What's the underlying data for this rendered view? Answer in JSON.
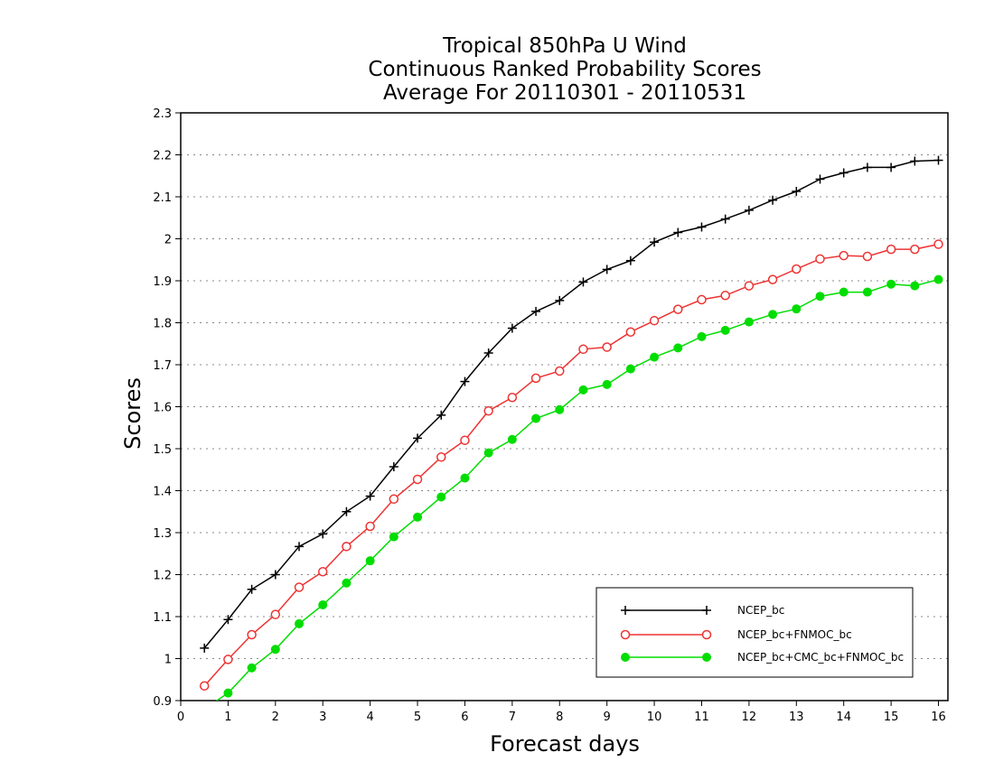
{
  "chart_data": {
    "type": "line",
    "title": [
      "Tropical 850hPa U Wind",
      "Continuous Ranked Probability Scores",
      "Average For 20110301 - 20110531"
    ],
    "xlabel": "Forecast days",
    "ylabel": "Scores",
    "xlim": [
      0,
      16.2
    ],
    "ylim": [
      0.9,
      2.3
    ],
    "xticks": [
      0,
      1,
      2,
      3,
      4,
      5,
      6,
      7,
      8,
      9,
      10,
      11,
      12,
      13,
      14,
      15,
      16
    ],
    "xtick_labels": [
      "0",
      "1",
      "2",
      "3",
      "4",
      "5",
      "6",
      "7",
      "8",
      "9",
      "10",
      "11",
      "12",
      "13",
      "14",
      "15",
      "16"
    ],
    "yticks": [
      0.9,
      1,
      1.1,
      1.2,
      1.3,
      1.4,
      1.5,
      1.6,
      1.7,
      1.8,
      1.9,
      2,
      2.1,
      2.2,
      2.3
    ],
    "ytick_labels": [
      "0.9",
      "1",
      "1.1",
      "1.2",
      "1.3",
      "1.4",
      "1.5",
      "1.6",
      "1.7",
      "1.8",
      "1.9",
      "2",
      "2.1",
      "2.2",
      "2.3"
    ],
    "grid": "horizontal dotted",
    "legend_position": "bottom-right",
    "x": [
      0.5,
      1,
      1.5,
      2,
      2.5,
      3,
      3.5,
      4,
      4.5,
      5,
      5.5,
      6,
      6.5,
      7,
      7.5,
      8,
      8.5,
      9,
      9.5,
      10,
      10.5,
      11,
      11.5,
      12,
      12.5,
      13,
      13.5,
      14,
      14.5,
      15,
      15.5,
      16
    ],
    "series": [
      {
        "name": "NCEP_bc",
        "color": "#000000",
        "marker": "plus",
        "values": [
          1.025,
          1.093,
          1.165,
          1.2,
          1.267,
          1.297,
          1.35,
          1.387,
          1.457,
          1.525,
          1.58,
          1.66,
          1.728,
          1.787,
          1.827,
          1.853,
          1.897,
          1.927,
          1.948,
          1.992,
          2.015,
          2.028,
          2.047,
          2.068,
          2.092,
          2.113,
          2.142,
          2.157,
          2.17,
          2.17,
          2.185,
          2.187
        ]
      },
      {
        "name": "NCEP_bc+FNMOC_bc",
        "color": "#ee3333",
        "marker": "open-circle",
        "values": [
          0.935,
          0.998,
          1.057,
          1.105,
          1.17,
          1.207,
          1.267,
          1.315,
          1.38,
          1.427,
          1.48,
          1.52,
          1.59,
          1.622,
          1.668,
          1.685,
          1.737,
          1.742,
          1.778,
          1.805,
          1.832,
          1.855,
          1.865,
          1.888,
          1.903,
          1.928,
          1.952,
          1.96,
          1.958,
          1.975,
          1.975,
          1.987
        ]
      },
      {
        "name": "NCEP_bc+CMC_bc+FNMOC_bc",
        "color": "#00dd00",
        "marker": "filled-circle",
        "values": [
          0.88,
          0.918,
          0.978,
          1.022,
          1.083,
          1.128,
          1.18,
          1.233,
          1.29,
          1.337,
          1.385,
          1.43,
          1.49,
          1.522,
          1.572,
          1.593,
          1.64,
          1.653,
          1.69,
          1.718,
          1.74,
          1.767,
          1.782,
          1.802,
          1.82,
          1.833,
          1.863,
          1.873,
          1.873,
          1.892,
          1.888,
          1.903
        ]
      }
    ]
  }
}
